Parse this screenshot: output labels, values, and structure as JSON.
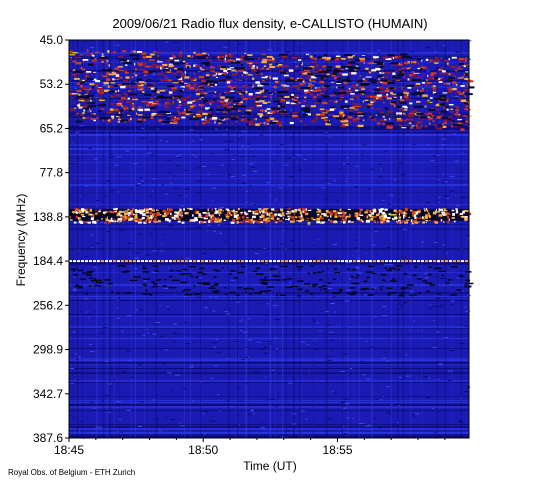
{
  "chart_data": {
    "type": "heatmap",
    "title": "2009/06/21  Radio flux density, e-CALLISTO (HUMAIN)",
    "xlabel": "Time (UT)",
    "ylabel": "Frequency (MHz)",
    "x_ticks": [
      "18:45",
      "18:50",
      "18:55"
    ],
    "x_tick_minutes": [
      0,
      5,
      10
    ],
    "x_range_minutes": [
      0,
      14.9
    ],
    "y_ticks": [
      "45.0",
      "53.2",
      "65.2",
      "77.8",
      "138.8",
      "184.4",
      "256.2",
      "298.9",
      "342.7",
      "387.6"
    ],
    "y_tick_values": [
      45.0,
      53.2,
      65.2,
      77.8,
      138.8,
      184.4,
      256.2,
      298.9,
      342.7,
      387.6
    ],
    "y_range": [
      45.0,
      387.6
    ],
    "y_direction": "increasing-downward",
    "colormap": [
      "#0a0a6e",
      "#1f1fc8",
      "#2a36e0",
      "#8a1a3a",
      "#d83a1a",
      "#f6b040",
      "#ffffff"
    ],
    "features": [
      {
        "name": "Drifting bright bands",
        "freq_range_mhz": [
          50,
          62
        ],
        "time_range_minutes": [
          0,
          14.9
        ]
      },
      {
        "name": "Interference band",
        "freq_mhz": 138.8,
        "time_range_minutes": [
          0,
          14.9
        ]
      },
      {
        "name": "Interference line",
        "freq_mhz": 184.4,
        "time_range_minutes": [
          0,
          14.9
        ]
      }
    ]
  },
  "credit": "Royal Obs. of Belgium - ETH Zurich"
}
